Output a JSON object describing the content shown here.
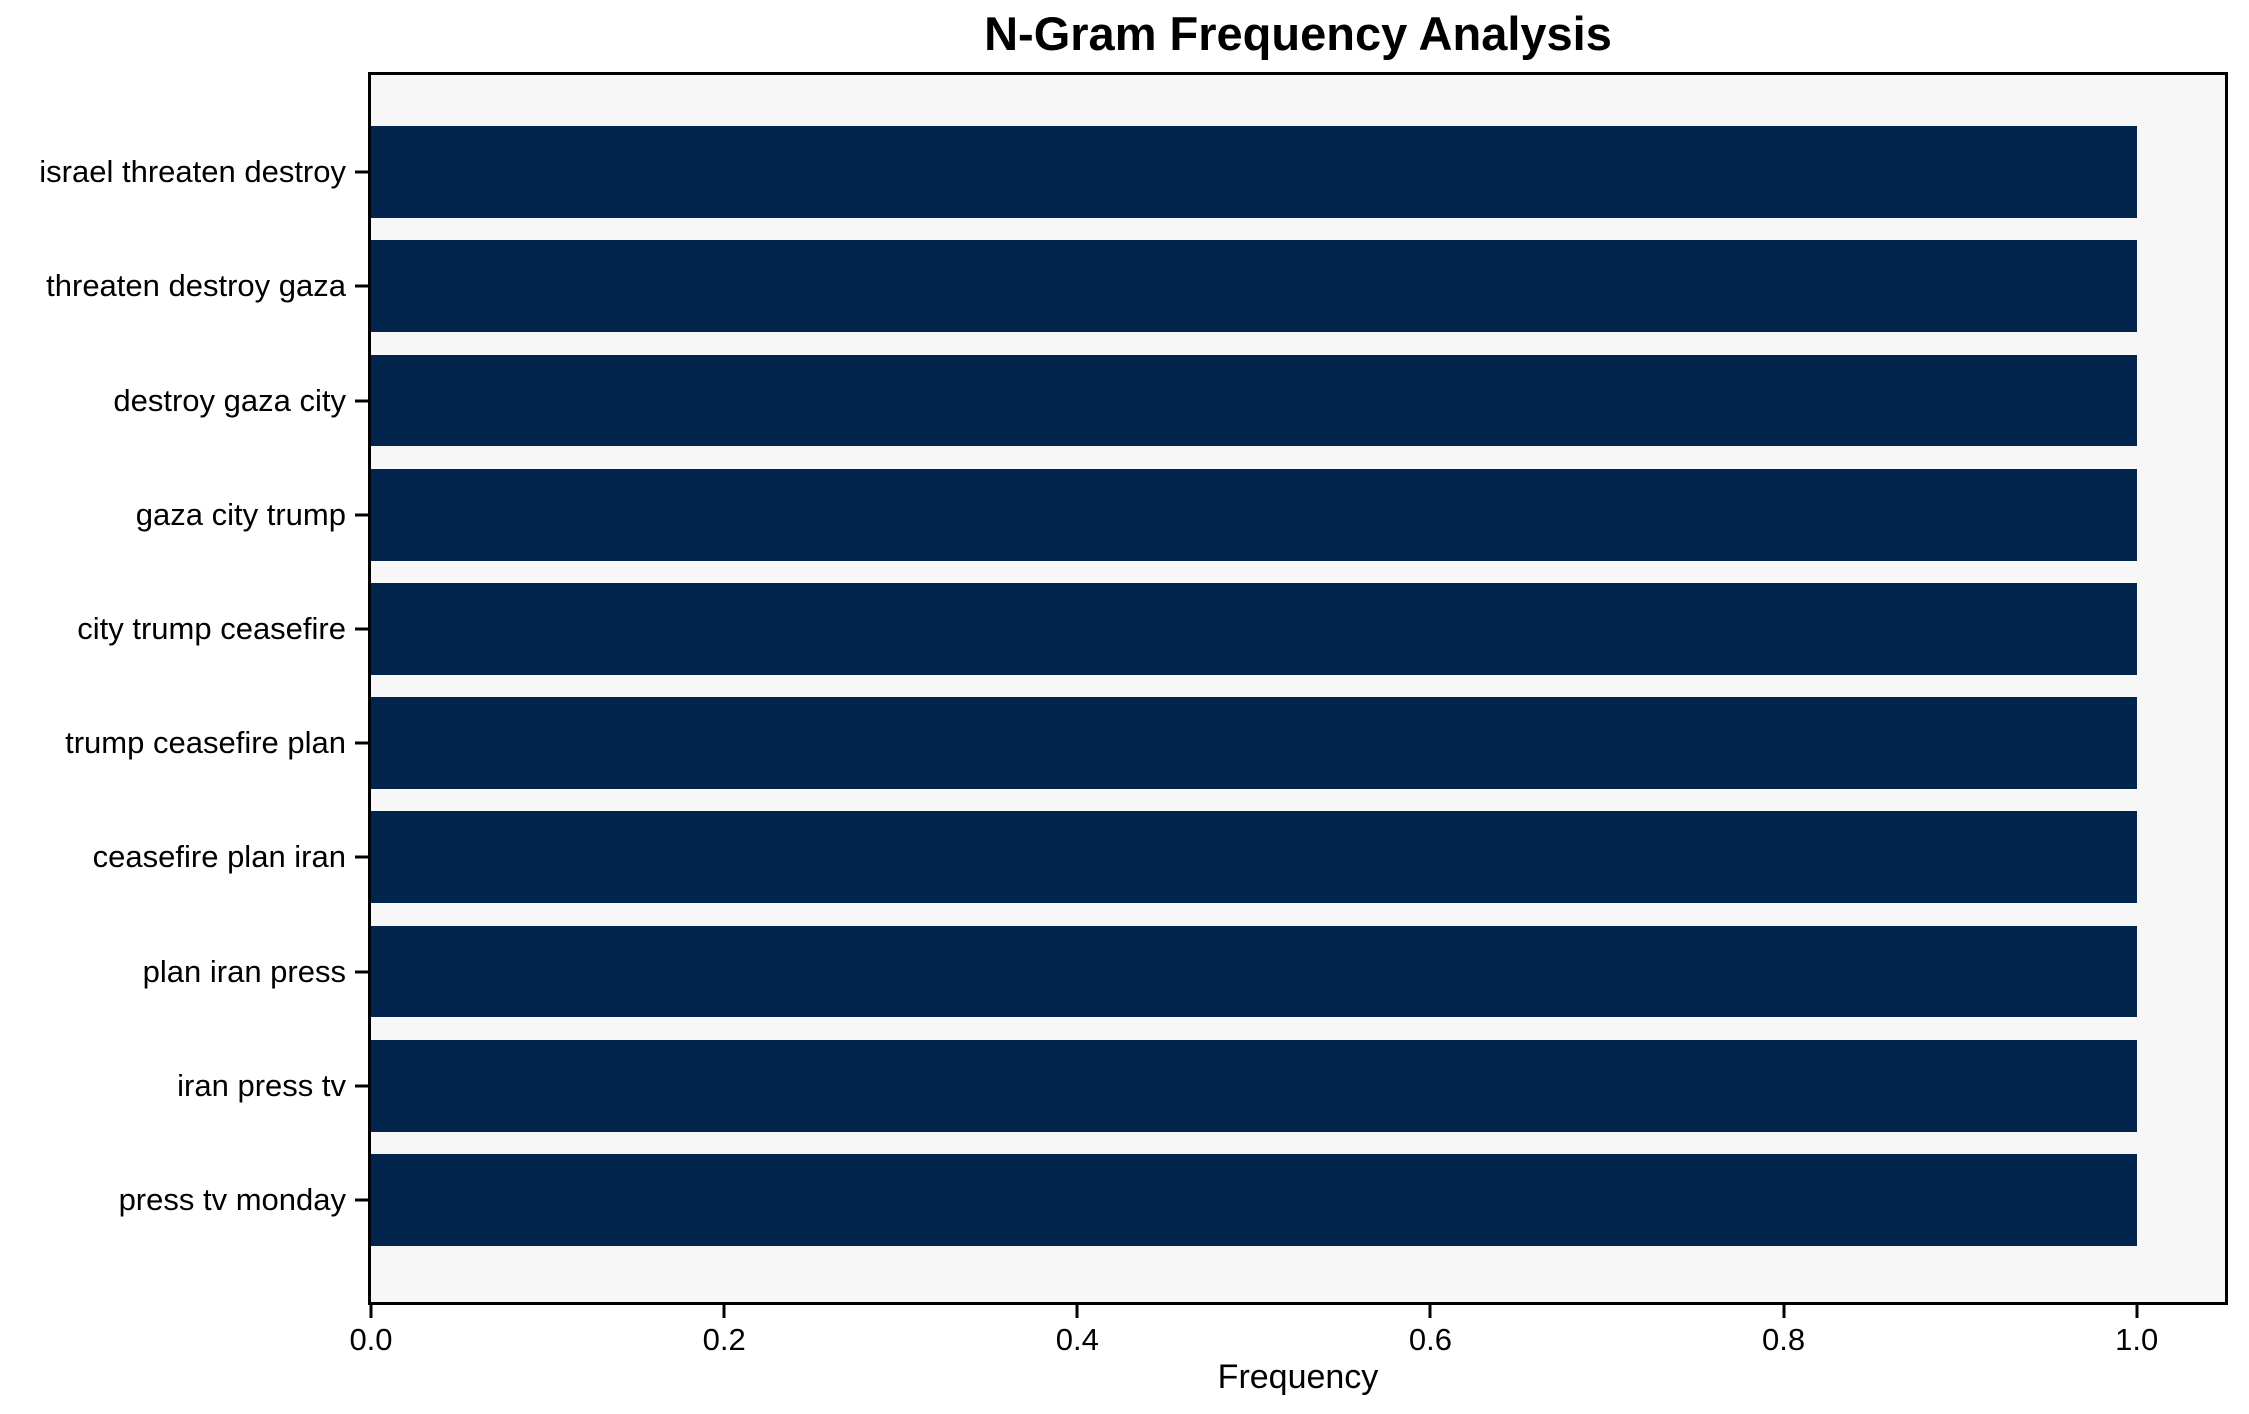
{
  "chart_data": {
    "type": "bar",
    "orientation": "horizontal",
    "title": "N-Gram Frequency Analysis",
    "xlabel": "Frequency",
    "ylabel": "",
    "categories": [
      "israel threaten destroy",
      "threaten destroy gaza",
      "destroy gaza city",
      "gaza city trump",
      "city trump ceasefire",
      "trump ceasefire plan",
      "ceasefire plan iran",
      "plan iran press",
      "iran press tv",
      "press tv monday"
    ],
    "values": [
      1.0,
      1.0,
      1.0,
      1.0,
      1.0,
      1.0,
      1.0,
      1.0,
      1.0,
      1.0
    ],
    "xlim": [
      0,
      1.05
    ],
    "xticks": [
      0.0,
      0.2,
      0.4,
      0.6,
      0.8,
      1.0
    ],
    "xtick_labels": [
      "0.0",
      "0.2",
      "0.4",
      "0.6",
      "0.8",
      "1.0"
    ],
    "grid": false,
    "legend": null,
    "bar_color": "#02254d",
    "plot_bg": "#f7f7f7",
    "spine_color": "#000000"
  }
}
